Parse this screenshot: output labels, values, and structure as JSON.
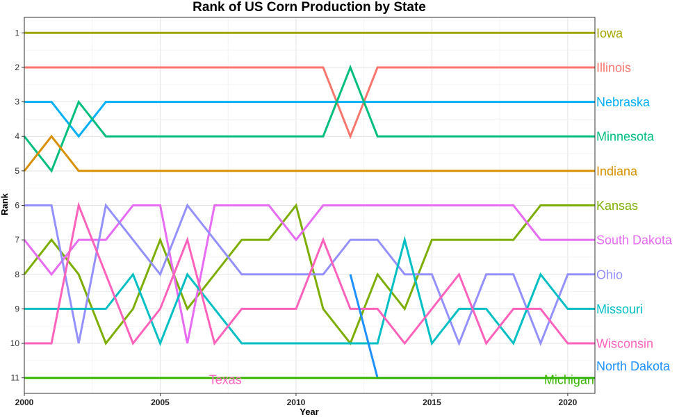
{
  "chart_data": {
    "type": "line",
    "title": "Rank of US Corn Production by State",
    "xlabel": "Year",
    "ylabel": "Rank",
    "xlim": [
      2000,
      2021
    ],
    "ylim": [
      11,
      1
    ],
    "y_reversed": true,
    "grid": true,
    "x_ticks": [
      2000,
      2005,
      2010,
      2015,
      2020
    ],
    "y_ticks": [
      1,
      2,
      3,
      4,
      5,
      6,
      7,
      8,
      9,
      10,
      11
    ],
    "legend": "direct labels at line ends",
    "series": [
      {
        "name": "Iowa",
        "color": "#A3A500",
        "points": [
          [
            2000,
            1
          ],
          [
            2021,
            1
          ]
        ],
        "label_at": [
          2021,
          1
        ]
      },
      {
        "name": "Illinois",
        "color": "#F8766D",
        "points": [
          [
            2000,
            2
          ],
          [
            2011,
            2
          ],
          [
            2012,
            4
          ],
          [
            2013,
            2
          ],
          [
            2021,
            2
          ]
        ],
        "label_at": [
          2021,
          2
        ]
      },
      {
        "name": "Nebraska",
        "color": "#00B0F6",
        "points": [
          [
            2000,
            3
          ],
          [
            2001,
            3
          ],
          [
            2002,
            4
          ],
          [
            2003,
            3
          ],
          [
            2021,
            3
          ]
        ],
        "label_at": [
          2021,
          3
        ]
      },
      {
        "name": "Minnesota",
        "color": "#00BF7D",
        "points": [
          [
            2000,
            4
          ],
          [
            2001,
            5
          ],
          [
            2002,
            3
          ],
          [
            2003,
            4
          ],
          [
            2011,
            4
          ],
          [
            2012,
            2
          ],
          [
            2013,
            4
          ],
          [
            2021,
            4
          ]
        ],
        "label_at": [
          2021,
          4
        ]
      },
      {
        "name": "Indiana",
        "color": "#D89000",
        "points": [
          [
            2000,
            5
          ],
          [
            2001,
            4
          ],
          [
            2002,
            5
          ],
          [
            2021,
            5
          ]
        ],
        "label_at": [
          2021,
          5
        ]
      },
      {
        "name": "Kansas",
        "color": "#7CAE00",
        "points": [
          [
            2000,
            8
          ],
          [
            2001,
            7
          ],
          [
            2002,
            8
          ],
          [
            2003,
            10
          ],
          [
            2004,
            9
          ],
          [
            2005,
            7
          ],
          [
            2006,
            9
          ],
          [
            2007,
            8
          ],
          [
            2008,
            7
          ],
          [
            2009,
            7
          ],
          [
            2010,
            6
          ],
          [
            2011,
            9
          ],
          [
            2012,
            10
          ],
          [
            2013,
            8
          ],
          [
            2014,
            9
          ],
          [
            2015,
            7
          ],
          [
            2016,
            7
          ],
          [
            2017,
            7
          ],
          [
            2018,
            7
          ],
          [
            2019,
            6
          ],
          [
            2020,
            6
          ],
          [
            2021,
            6
          ]
        ],
        "label_at": [
          2021,
          6
        ]
      },
      {
        "name": "South Dakota",
        "color": "#E76BF3",
        "points": [
          [
            2000,
            7
          ],
          [
            2001,
            8
          ],
          [
            2002,
            7
          ],
          [
            2003,
            7
          ],
          [
            2004,
            6
          ],
          [
            2005,
            6
          ],
          [
            2006,
            10
          ],
          [
            2007,
            6
          ],
          [
            2008,
            6
          ],
          [
            2009,
            6
          ],
          [
            2010,
            7
          ],
          [
            2011,
            6
          ],
          [
            2012,
            6
          ],
          [
            2013,
            6
          ],
          [
            2014,
            6
          ],
          [
            2015,
            6
          ],
          [
            2016,
            6
          ],
          [
            2017,
            6
          ],
          [
            2018,
            6
          ],
          [
            2019,
            7
          ],
          [
            2020,
            7
          ],
          [
            2021,
            7
          ]
        ],
        "label_at": [
          2021,
          7
        ]
      },
      {
        "name": "Ohio",
        "color": "#9590FF",
        "points": [
          [
            2000,
            6
          ],
          [
            2001,
            6
          ],
          [
            2002,
            10
          ],
          [
            2003,
            6
          ],
          [
            2004,
            7
          ],
          [
            2005,
            8
          ],
          [
            2006,
            6
          ],
          [
            2007,
            7
          ],
          [
            2008,
            8
          ],
          [
            2009,
            8
          ],
          [
            2010,
            8
          ],
          [
            2011,
            8
          ],
          [
            2012,
            7
          ],
          [
            2013,
            7
          ],
          [
            2014,
            8
          ],
          [
            2015,
            8
          ],
          [
            2016,
            10
          ],
          [
            2017,
            8
          ],
          [
            2018,
            8
          ],
          [
            2019,
            10
          ],
          [
            2020,
            8
          ],
          [
            2021,
            8
          ]
        ],
        "label_at": [
          2021,
          8
        ]
      },
      {
        "name": "Missouri",
        "color": "#00BFC4",
        "points": [
          [
            2000,
            9
          ],
          [
            2001,
            9
          ],
          [
            2002,
            9
          ],
          [
            2003,
            9
          ],
          [
            2004,
            8
          ],
          [
            2005,
            10
          ],
          [
            2006,
            8
          ],
          [
            2007,
            9
          ],
          [
            2008,
            10
          ],
          [
            2009,
            10
          ],
          [
            2010,
            10
          ],
          [
            2011,
            10
          ],
          [
            2012,
            10
          ],
          [
            2013,
            10
          ],
          [
            2014,
            7
          ],
          [
            2015,
            10
          ],
          [
            2016,
            9
          ],
          [
            2017,
            9
          ],
          [
            2018,
            10
          ],
          [
            2019,
            8
          ],
          [
            2020,
            9
          ],
          [
            2021,
            9
          ]
        ],
        "label_at": [
          2021,
          9
        ]
      },
      {
        "name": "Wisconsin",
        "color": "#FF62BC",
        "points": [
          [
            2000,
            10
          ],
          [
            2001,
            10
          ],
          [
            2002,
            6
          ],
          [
            2003,
            8
          ],
          [
            2004,
            10
          ],
          [
            2005,
            9
          ],
          [
            2006,
            7
          ],
          [
            2007,
            10
          ],
          [
            2008,
            9
          ],
          [
            2009,
            9
          ],
          [
            2010,
            9
          ],
          [
            2011,
            7
          ],
          [
            2012,
            9
          ],
          [
            2013,
            9
          ],
          [
            2014,
            10
          ],
          [
            2015,
            9
          ],
          [
            2016,
            8
          ],
          [
            2017,
            10
          ],
          [
            2018,
            9
          ],
          [
            2019,
            9
          ],
          [
            2020,
            10
          ],
          [
            2021,
            10
          ]
        ],
        "label_at": [
          2021,
          10
        ]
      },
      {
        "name": "North Dakota",
        "color": "#1E90FF",
        "points": [
          [
            2012,
            8
          ],
          [
            2013,
            11
          ],
          [
            2021,
            11
          ]
        ],
        "label_at": [
          2021,
          10.65
        ]
      },
      {
        "name": "Texas",
        "color": "#FF62BC",
        "points": [],
        "label_at": [
          2007.4,
          11.05
        ]
      },
      {
        "name": "Michigan",
        "color": "#39B600",
        "points": [
          [
            2000,
            11
          ],
          [
            2021,
            11
          ]
        ],
        "label_at": [
          2020,
          11.05
        ]
      }
    ]
  }
}
